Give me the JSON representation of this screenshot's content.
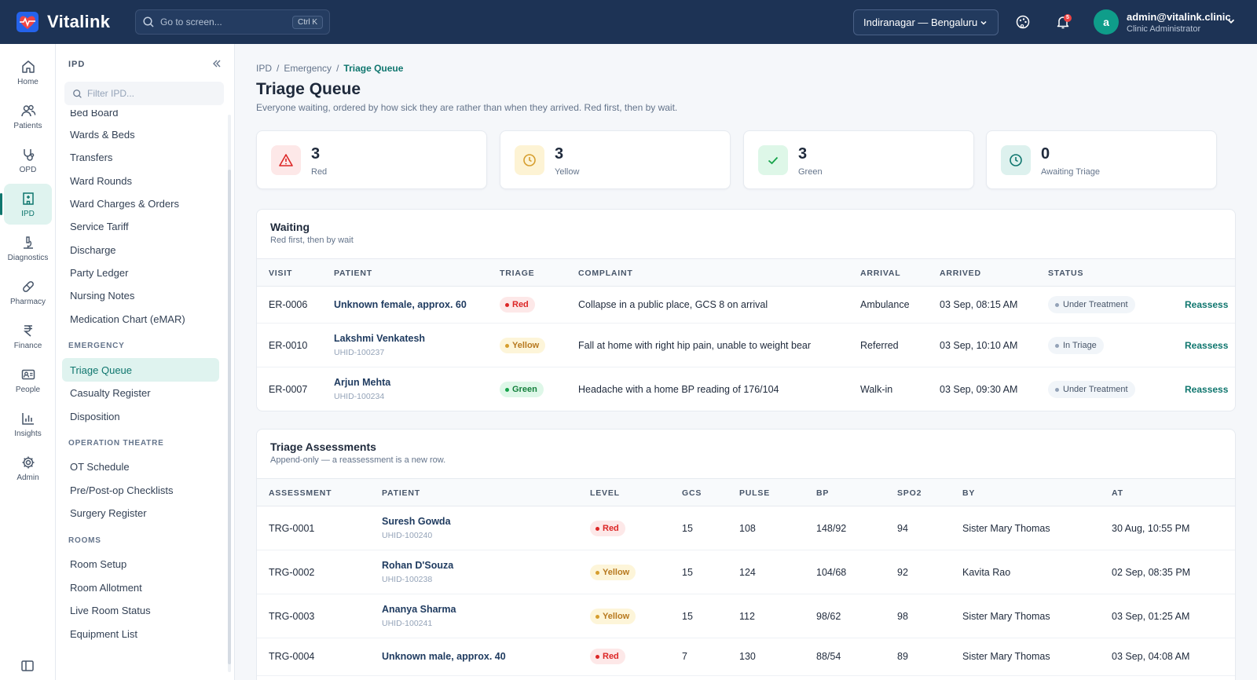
{
  "app": {
    "name": "Vitalink"
  },
  "search": {
    "placeholder": "Go to screen...",
    "shortcut": "Ctrl K"
  },
  "branch": {
    "label": "Indiranagar — Bengaluru"
  },
  "notifications": {
    "count": "5"
  },
  "user": {
    "initial": "a",
    "email": "admin@vitalink.clinic",
    "role": "Clinic Administrator"
  },
  "rail": [
    {
      "label": "Home",
      "icon": "home-icon"
    },
    {
      "label": "Patients",
      "icon": "users-icon"
    },
    {
      "label": "OPD",
      "icon": "stethoscope-icon"
    },
    {
      "label": "IPD",
      "icon": "hospital-icon",
      "active": true
    },
    {
      "label": "Diagnostics",
      "icon": "microscope-icon"
    },
    {
      "label": "Pharmacy",
      "icon": "pill-icon"
    },
    {
      "label": "Finance",
      "icon": "rupee-icon"
    },
    {
      "label": "People",
      "icon": "id-card-icon"
    },
    {
      "label": "Insights",
      "icon": "bar-chart-icon"
    },
    {
      "label": "Admin",
      "icon": "gear-icon"
    }
  ],
  "subnav": {
    "heading": "IPD",
    "filter_placeholder": "Filter IPD...",
    "items": [
      "Bed Board",
      "Wards & Beds",
      "Transfers",
      "Ward Rounds",
      "Ward Charges & Orders",
      "Service Tariff",
      "Discharge",
      "Party Ledger",
      "Nursing Notes",
      "Medication Chart (eMAR)"
    ],
    "emergency_heading": "EMERGENCY",
    "emergency_items": [
      "Triage Queue",
      "Casualty Register",
      "Disposition"
    ],
    "ot_heading": "OPERATION THEATRE",
    "ot_items": [
      "OT Schedule",
      "Pre/Post-op Checklists",
      "Surgery Register"
    ],
    "rooms_heading": "ROOMS",
    "rooms_items": [
      "Room Setup",
      "Room Allotment",
      "Live Room Status",
      "Equipment List"
    ]
  },
  "breadcrumb": [
    "IPD",
    "Emergency",
    "Triage Queue"
  ],
  "page": {
    "title": "Triage Queue",
    "subtitle": "Everyone waiting, ordered by how sick they are rather than when they arrived. Red first, then by wait."
  },
  "stats": [
    {
      "value": "3",
      "label": "Red",
      "icon": "alert-triangle-icon",
      "color": "#dc2626",
      "bg": "#fde8e8"
    },
    {
      "value": "3",
      "label": "Yellow",
      "icon": "clock-icon",
      "color": "#d69e2e",
      "bg": "#fdf3d4"
    },
    {
      "value": "3",
      "label": "Green",
      "icon": "check-icon",
      "color": "#16a34a",
      "bg": "#def7e8"
    },
    {
      "value": "0",
      "label": "Awaiting Triage",
      "icon": "clock-icon",
      "color": "#0f766e",
      "bg": "#ddf1ee"
    }
  ],
  "waiting": {
    "title": "Waiting",
    "subtitle": "Red first, then by wait",
    "headers": [
      "VISIT",
      "PATIENT",
      "TRIAGE",
      "COMPLAINT",
      "ARRIVAL",
      "ARRIVED",
      "STATUS"
    ],
    "action": "Reassess",
    "rows": [
      {
        "visit": "ER-0006",
        "patient": "Unknown female, approx. 60",
        "uhid": "",
        "triage": "Red",
        "level": "red",
        "complaint": "Collapse in a public place, GCS 8 on arrival",
        "arrival": "Ambulance",
        "arrived": "03 Sep, 08:15 AM",
        "status": "Under Treatment"
      },
      {
        "visit": "ER-0010",
        "patient": "Lakshmi Venkatesh",
        "uhid": "UHID-100237",
        "triage": "Yellow",
        "level": "yellow",
        "complaint": "Fall at home with right hip pain, unable to weight bear",
        "arrival": "Referred",
        "arrived": "03 Sep, 10:10 AM",
        "status": "In Triage"
      },
      {
        "visit": "ER-0007",
        "patient": "Arjun Mehta",
        "uhid": "UHID-100234",
        "triage": "Green",
        "level": "green",
        "complaint": "Headache with a home BP reading of 176/104",
        "arrival": "Walk-in",
        "arrived": "03 Sep, 09:30 AM",
        "status": "Under Treatment"
      }
    ]
  },
  "assessments": {
    "title": "Triage Assessments",
    "subtitle": "Append-only — a reassessment is a new row.",
    "headers": [
      "ASSESSMENT",
      "PATIENT",
      "LEVEL",
      "GCS",
      "PULSE",
      "BP",
      "SPO2",
      "BY",
      "AT"
    ],
    "rows": [
      {
        "id": "TRG-0001",
        "patient": "Suresh Gowda",
        "uhid": "UHID-100240",
        "level": "Red",
        "cls": "red",
        "gcs": "15",
        "pulse": "108",
        "bp": "148/92",
        "spo2": "94",
        "by": "Sister Mary Thomas",
        "at": "30 Aug, 10:55 PM"
      },
      {
        "id": "TRG-0002",
        "patient": "Rohan D'Souza",
        "uhid": "UHID-100238",
        "level": "Yellow",
        "cls": "yellow",
        "gcs": "15",
        "pulse": "124",
        "bp": "104/68",
        "spo2": "92",
        "by": "Kavita Rao",
        "at": "02 Sep, 08:35 PM"
      },
      {
        "id": "TRG-0003",
        "patient": "Ananya Sharma",
        "uhid": "UHID-100241",
        "level": "Yellow",
        "cls": "yellow",
        "gcs": "15",
        "pulse": "112",
        "bp": "98/62",
        "spo2": "98",
        "by": "Sister Mary Thomas",
        "at": "03 Sep, 01:25 AM"
      },
      {
        "id": "TRG-0004",
        "patient": "Unknown male, approx. 40",
        "uhid": "",
        "level": "Red",
        "cls": "red",
        "gcs": "7",
        "pulse": "130",
        "bp": "88/54",
        "spo2": "89",
        "by": "Sister Mary Thomas",
        "at": "03 Sep, 04:08 AM"
      }
    ]
  }
}
